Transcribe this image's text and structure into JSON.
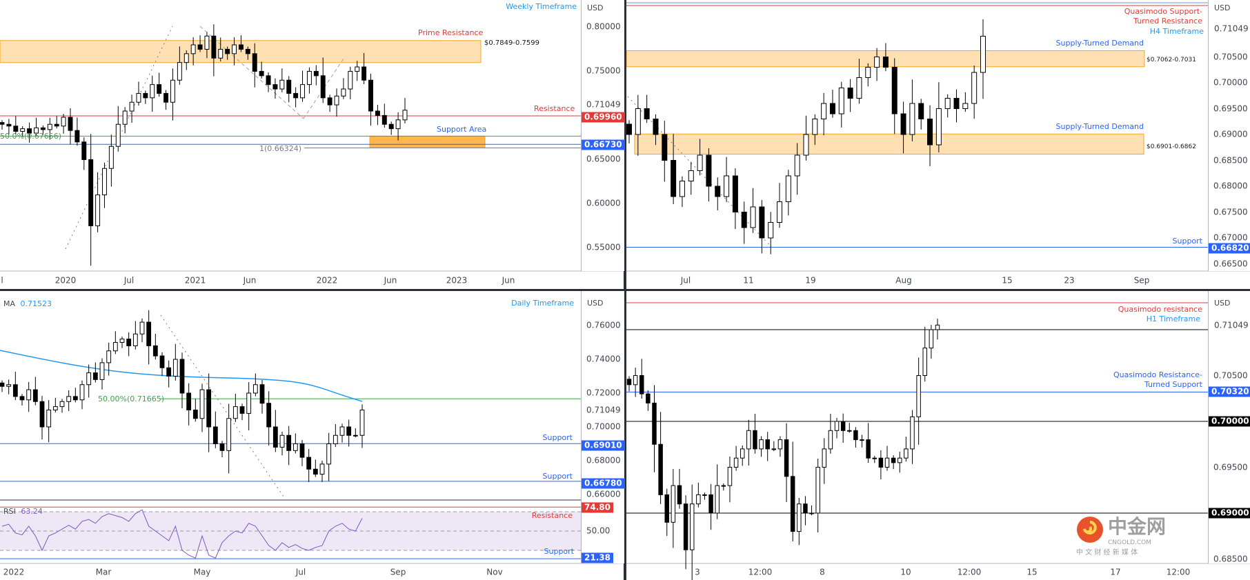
{
  "colors": {
    "support": "#2962ff",
    "resistance": "#e53935",
    "zone": "#ffe0b2",
    "zone_border": "#f5a623",
    "support_zone": "#ffb74d",
    "fib": "#43a047",
    "ma": "#2196f3",
    "rsi": "#7e57c2",
    "rsi_band": "#ede7f6",
    "separator": "#2a2e39"
  },
  "weekly": {
    "title": "Weekly Timeframe",
    "currency": "USD",
    "current_price": "0.71049",
    "ticks": [
      "0.80000",
      "0.75000",
      "0.65000",
      "0.60000",
      "0.55000"
    ],
    "dates": [
      "l",
      "2020",
      "Jul",
      "2021",
      "Jun",
      "2022",
      "Jun",
      "2023",
      "Jun"
    ],
    "prime_resistance": {
      "label": "Prime Resistance",
      "range": "$0.7849-0.7599",
      "high": 0.7849,
      "low": 0.7599
    },
    "resistance": {
      "label": "Resistance",
      "price": 0.6996,
      "badge": "0.69960"
    },
    "support_area": {
      "label": "Support Area",
      "high": 0.67656,
      "low": 0.66324
    },
    "support_line": {
      "price": 0.6673,
      "badge": "0.66730"
    },
    "fib_50": {
      "label": "50.0%(0.67656)",
      "price": 0.67656
    },
    "fib_1": {
      "label": "1(0.66324)",
      "price": 0.66324
    }
  },
  "h4": {
    "title": "H4 Timeframe",
    "currency": "USD",
    "current_price": "0.71049",
    "ticks": [
      "0.70500",
      "0.70000",
      "0.69500",
      "0.69000",
      "0.68500",
      "0.68000",
      "0.67500",
      "0.67000",
      "0.66500"
    ],
    "dates": [
      "Jul",
      "11",
      "19",
      "Aug",
      "15",
      "23",
      "Sep"
    ],
    "quasimodo": {
      "label_1": "Quasimodo Support-",
      "label_2": "Turned Resistance",
      "price": 0.7133
    },
    "upper_zone": {
      "label": "Supply-Turned Demand",
      "range": "$0.7062-0.7031",
      "high": 0.7062,
      "low": 0.7031
    },
    "lower_zone": {
      "label": "Supply-Turned Demand",
      "range": "$0.6901-0.6862",
      "high": 0.6901,
      "low": 0.6862
    },
    "support": {
      "label": "Support",
      "price": 0.6682,
      "badge": "0.66820"
    }
  },
  "daily": {
    "title": "Daily Timeframe",
    "currency": "USD",
    "current_price": "0.71049",
    "ma_label": "MA",
    "ma_value": "0.71523",
    "ticks": [
      "0.76000",
      "0.74000",
      "0.72000",
      "0.70000",
      "0.68000",
      "0.66000"
    ],
    "dates": [
      "2022",
      "Mar",
      "May",
      "Jul",
      "Sep",
      "Nov"
    ],
    "fib": {
      "label": "50.00%(0.71665)",
      "price": 0.71665
    },
    "support_1": {
      "label": "Support",
      "price": 0.6901,
      "badge": "0.69010"
    },
    "support_2": {
      "label": "Support",
      "price": 0.6678,
      "badge": "0.66780"
    },
    "rsi": {
      "label": "RSI",
      "value": "63.24",
      "mid_tick": "50.00",
      "resistance_label": "Resistance",
      "resistance_value": 74.8,
      "resistance_badge": "74.80",
      "support_label": "Support",
      "support_value": 21.38,
      "support_badge": "21.38"
    }
  },
  "h1": {
    "title": "H1 Timeframe",
    "currency": "USD",
    "current_price": "0.71049",
    "ticks": [
      "0.70500",
      "0.69500",
      "0.68500"
    ],
    "dates": [
      "3",
      "12:00",
      "8",
      "10",
      "12:00",
      "15",
      "17",
      "12:00"
    ],
    "quasimodo_resistance": {
      "label": "Quasimodo resistance",
      "price": 0.7135
    },
    "level_071": {
      "price": 0.71
    },
    "qm_support": {
      "label_1": "Quasimodo Resistance-",
      "label_2": "Turned Support",
      "price": 0.7032,
      "badge": "0.70320"
    },
    "level_070": {
      "price": 0.7,
      "badge": "0.70000"
    },
    "level_069": {
      "price": 0.69,
      "badge": "0.69000"
    }
  },
  "watermark": {
    "name": "中金网",
    "domain": "CNGOLD.COM",
    "tagline": "中 文 财 经 新 媒 体"
  },
  "chart_data": [
    {
      "type": "candlestick",
      "title": "Weekly Timeframe",
      "ylabel": "USD",
      "ylim": [
        0.53,
        0.82
      ],
      "closes": [
        0.69,
        0.688,
        0.682,
        0.685,
        0.68,
        0.686,
        0.684,
        0.69,
        0.688,
        0.698,
        0.683,
        0.67,
        0.65,
        0.575,
        0.61,
        0.64,
        0.665,
        0.69,
        0.705,
        0.715,
        0.725,
        0.72,
        0.735,
        0.725,
        0.715,
        0.74,
        0.76,
        0.77,
        0.78,
        0.775,
        0.79,
        0.765,
        0.775,
        0.77,
        0.78,
        0.775,
        0.77,
        0.75,
        0.745,
        0.735,
        0.73,
        0.74,
        0.725,
        0.72,
        0.735,
        0.75,
        0.745,
        0.72,
        0.712,
        0.722,
        0.73,
        0.75,
        0.755,
        0.74,
        0.705,
        0.7,
        0.69,
        0.685,
        0.695,
        0.706
      ]
    },
    {
      "type": "candlestick",
      "title": "H4 Timeframe",
      "ylabel": "USD",
      "ylim": [
        0.664,
        0.716
      ],
      "closes": [
        0.69,
        0.695,
        0.693,
        0.69,
        0.685,
        0.678,
        0.681,
        0.683,
        0.686,
        0.68,
        0.678,
        0.682,
        0.675,
        0.672,
        0.676,
        0.67,
        0.673,
        0.677,
        0.682,
        0.686,
        0.69,
        0.693,
        0.696,
        0.694,
        0.699,
        0.697,
        0.701,
        0.703,
        0.705,
        0.703,
        0.694,
        0.69,
        0.696,
        0.693,
        0.688,
        0.695,
        0.697,
        0.695,
        0.696,
        0.702,
        0.709
      ]
    },
    {
      "type": "candlestick",
      "title": "Daily Timeframe",
      "ylabel": "USD",
      "ylim": [
        0.657,
        0.772
      ],
      "closes": [
        0.724,
        0.725,
        0.718,
        0.716,
        0.722,
        0.715,
        0.7,
        0.71,
        0.712,
        0.715,
        0.718,
        0.716,
        0.725,
        0.732,
        0.728,
        0.738,
        0.745,
        0.75,
        0.752,
        0.748,
        0.755,
        0.762,
        0.748,
        0.742,
        0.735,
        0.73,
        0.74,
        0.72,
        0.71,
        0.705,
        0.722,
        0.7,
        0.69,
        0.686,
        0.705,
        0.712,
        0.708,
        0.72,
        0.725,
        0.714,
        0.7,
        0.688,
        0.695,
        0.686,
        0.69,
        0.682,
        0.675,
        0.672,
        0.678,
        0.69,
        0.695,
        0.7,
        0.695,
        0.695,
        0.71
      ],
      "ma": {
        "name": "MA",
        "start": 0.7385,
        "end": 0.7152
      },
      "rsi": [
        55,
        57,
        48,
        46,
        55,
        45,
        30,
        45,
        48,
        52,
        56,
        52,
        60,
        62,
        58,
        65,
        68,
        66,
        64,
        60,
        68,
        72,
        55,
        50,
        45,
        40,
        55,
        30,
        25,
        22,
        45,
        25,
        22,
        38,
        45,
        50,
        48,
        58,
        55,
        45,
        35,
        30,
        38,
        33,
        36,
        32,
        30,
        33,
        35,
        50,
        55,
        58,
        52,
        50,
        63.24
      ]
    },
    {
      "type": "candlestick",
      "title": "H1 Timeframe",
      "ylabel": "USD",
      "ylim": [
        0.6835,
        0.7145
      ],
      "closes": [
        0.704,
        0.705,
        0.703,
        0.702,
        0.6975,
        0.692,
        0.689,
        0.693,
        0.691,
        0.686,
        0.691,
        0.692,
        0.692,
        0.69,
        0.693,
        0.693,
        0.695,
        0.696,
        0.697,
        0.699,
        0.697,
        0.698,
        0.697,
        0.697,
        0.698,
        0.694,
        0.688,
        0.691,
        0.69,
        0.69,
        0.695,
        0.697,
        0.699,
        0.7,
        0.699,
        0.699,
        0.698,
        0.698,
        0.696,
        0.696,
        0.695,
        0.696,
        0.6955,
        0.696,
        0.697,
        0.7005,
        0.705,
        0.708,
        0.71,
        0.7105
      ]
    }
  ]
}
